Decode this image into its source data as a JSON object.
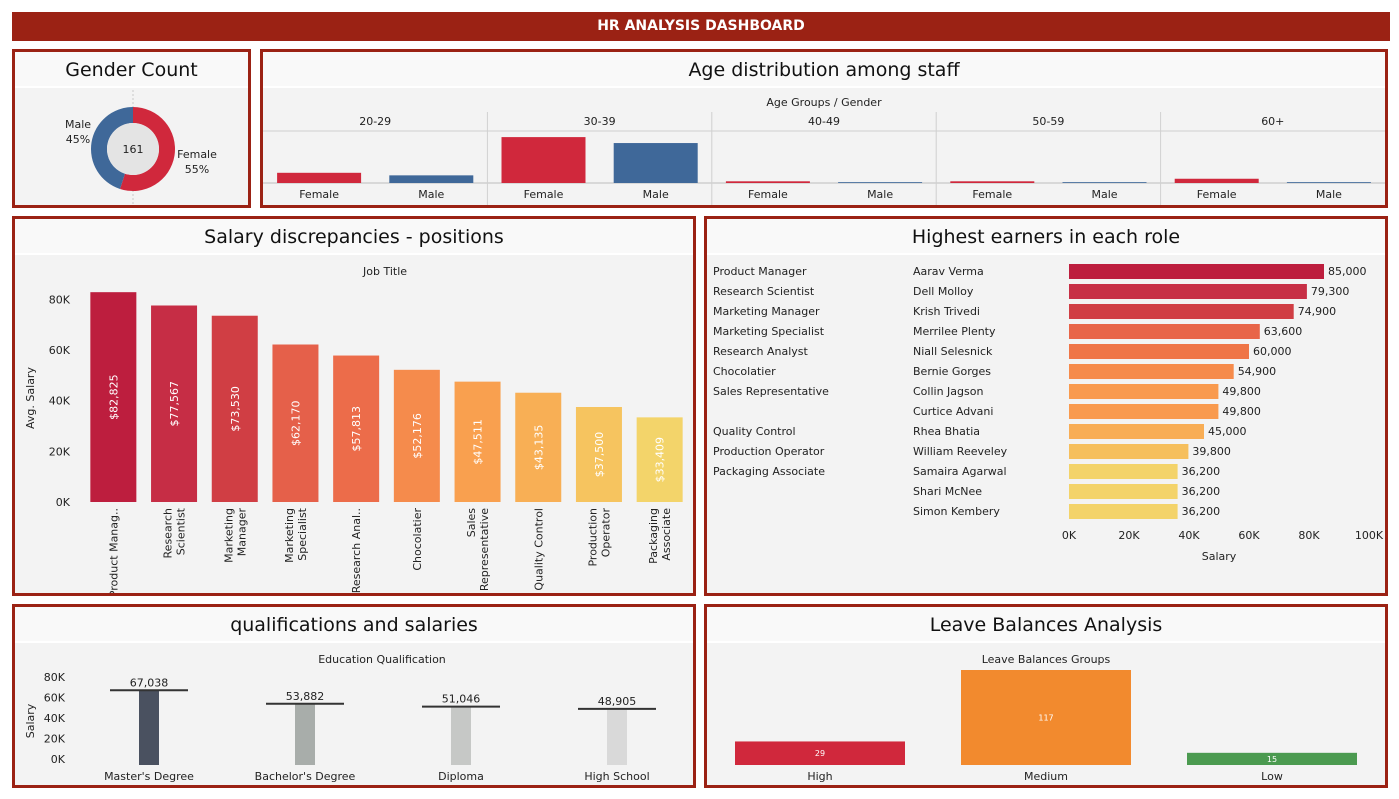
{
  "header": {
    "title": "HR ANALYSIS DASHBOARD"
  },
  "panels": {
    "gender": {
      "title": "Gender Count"
    },
    "age": {
      "title": "Age distribution among staff"
    },
    "salary": {
      "title": "Salary discrepancies - positions"
    },
    "earners": {
      "title": "Highest earners in each role"
    },
    "qual": {
      "title": "qualifications and salaries"
    },
    "leave": {
      "title": "Leave Balances Analysis"
    }
  },
  "chart_data": [
    {
      "id": "gender",
      "type": "pie",
      "total_label": "161",
      "slices": [
        {
          "name": "Female",
          "percent": 55,
          "pct_label": "55%",
          "color": "#d0283c"
        },
        {
          "name": "Male",
          "percent": 45,
          "pct_label": "45%",
          "color": "#3f6899"
        }
      ]
    },
    {
      "id": "age",
      "type": "bar",
      "header_label": "Age Groups  /  Gender",
      "groups": [
        {
          "label": "20-29",
          "values": [
            12,
            9
          ]
        },
        {
          "label": "30-39",
          "values": [
            54,
            47
          ]
        },
        {
          "label": "40-49",
          "values": [
            2,
            1
          ]
        },
        {
          "label": "50-59",
          "values": [
            2,
            1
          ]
        },
        {
          "label": "60+",
          "values": [
            5,
            1
          ]
        }
      ],
      "series": [
        {
          "name": "Female",
          "color": "#d0283c"
        },
        {
          "name": "Male",
          "color": "#3f6899"
        }
      ]
    },
    {
      "id": "salary",
      "type": "bar",
      "xlabel": "Job Title",
      "ylabel": "Avg. Salary",
      "ylim": [
        0,
        90000
      ],
      "yticks": [
        {
          "v": 0,
          "label": "0K"
        },
        {
          "v": 20000,
          "label": "20K"
        },
        {
          "v": 40000,
          "label": "40K"
        },
        {
          "v": 60000,
          "label": "60K"
        },
        {
          "v": 80000,
          "label": "80K"
        }
      ],
      "categories": [
        "Product Manag..",
        "Research Scientist",
        "Marketing Manager",
        "Marketing Specialist",
        "Research Anal..",
        "Chocolatier",
        "Sales Representative",
        "Quality Control",
        "Production Operator",
        "Packaging Associate"
      ],
      "category_lines": [
        [
          "Product Manag.."
        ],
        [
          "Research",
          "Scientist"
        ],
        [
          "Marketing",
          "Manager"
        ],
        [
          "Marketing",
          "Specialist"
        ],
        [
          "Research Anal.."
        ],
        [
          "Chocolatier"
        ],
        [
          "Sales",
          "Representative"
        ],
        [
          "Quality Control"
        ],
        [
          "Production",
          "Operator"
        ],
        [
          "Packaging",
          "Associate"
        ]
      ],
      "values": [
        82825,
        77567,
        73530,
        62170,
        57813,
        52176,
        47511,
        43135,
        37500,
        33409
      ],
      "value_labels": [
        "$82,825",
        "$77,567",
        "$73,530",
        "$62,170",
        "$57,813",
        "$52,176",
        "$47,511",
        "$43,135",
        "$37,500",
        "$33,409"
      ],
      "colors": [
        "#bd1e3e",
        "#c62d45",
        "#d03e44",
        "#e5604a",
        "#ec6c4a",
        "#f58b4c",
        "#f9a04f",
        "#f8af55",
        "#f6c45f",
        "#f3d46a"
      ]
    },
    {
      "id": "earners",
      "type": "bar",
      "orientation": "horizontal",
      "xlabel": "Salary",
      "xlim": [
        0,
        100000
      ],
      "xticks": [
        {
          "v": 0,
          "label": "0K"
        },
        {
          "v": 20000,
          "label": "20K"
        },
        {
          "v": 40000,
          "label": "40K"
        },
        {
          "v": 60000,
          "label": "60K"
        },
        {
          "v": 80000,
          "label": "80K"
        },
        {
          "v": 100000,
          "label": "100K"
        }
      ],
      "rows": [
        {
          "role": "Product Manager",
          "name": "Aarav Verma",
          "value": 85000,
          "label": "85,000",
          "color": "#bd1e3e"
        },
        {
          "role": "Research Scientist",
          "name": "Dell Molloy",
          "value": 79300,
          "label": "79,300",
          "color": "#c72f45"
        },
        {
          "role": "Marketing Manager",
          "name": "Krish Trivedi",
          "value": 74900,
          "label": "74,900",
          "color": "#d03e44"
        },
        {
          "role": "Marketing Specialist",
          "name": "Merrilee Plenty",
          "value": 63600,
          "label": "63,600",
          "color": "#e86548"
        },
        {
          "role": "Research Analyst",
          "name": "Niall Selesnick",
          "value": 60000,
          "label": "60,000",
          "color": "#ef7547"
        },
        {
          "role": "Chocolatier",
          "name": "Bernie Gorges",
          "value": 54900,
          "label": "54,900",
          "color": "#f68b4b"
        },
        {
          "role": "Sales Representative",
          "name": "Collin Jagson",
          "value": 49800,
          "label": "49,800",
          "color": "#f99a4e"
        },
        {
          "role": "",
          "name": "Curtice Advani",
          "value": 49800,
          "label": "49,800",
          "color": "#f99a4e"
        },
        {
          "role": "Quality Control",
          "name": "Rhea Bhatia",
          "value": 45000,
          "label": "45,000",
          "color": "#f8ad55"
        },
        {
          "role": "Production Operator",
          "name": "William Reeveley",
          "value": 39800,
          "label": "39,800",
          "color": "#f6bf5d"
        },
        {
          "role": "Packaging Associate",
          "name": "Samaira Agarwal",
          "value": 36200,
          "label": "36,200",
          "color": "#f3d36a"
        },
        {
          "role": "",
          "name": "Shari McNee",
          "value": 36200,
          "label": "36,200",
          "color": "#f3d36a"
        },
        {
          "role": "",
          "name": "Simon Kembery",
          "value": 36200,
          "label": "36,200",
          "color": "#f3d36a"
        }
      ]
    },
    {
      "id": "qual",
      "type": "bar",
      "xlabel": "Education Qualification",
      "ylabel": "Salary",
      "ylim": [
        0,
        80000
      ],
      "yticks": [
        {
          "v": 0,
          "label": "0K"
        },
        {
          "v": 20000,
          "label": "20K"
        },
        {
          "v": 40000,
          "label": "40K"
        },
        {
          "v": 60000,
          "label": "60K"
        },
        {
          "v": 80000,
          "label": "80K"
        }
      ],
      "categories": [
        "Master's Degree",
        "Bachelor's Degree",
        "Diploma",
        "High School"
      ],
      "values": [
        67038,
        53882,
        51046,
        48905
      ],
      "value_labels": [
        "67,038",
        "53,882",
        "51,046",
        "48,905"
      ],
      "colors": [
        "#4a5160",
        "#a8adaa",
        "#c6c8c6",
        "#d9d9d9"
      ]
    },
    {
      "id": "leave",
      "type": "bar",
      "xlabel": "Leave Balances Groups",
      "categories": [
        "High",
        "Medium",
        "Low"
      ],
      "values": [
        29,
        117,
        15
      ],
      "value_labels": [
        "29",
        "117",
        "15"
      ],
      "colors": [
        "#d0283c",
        "#f28a2e",
        "#4b9a50"
      ]
    }
  ]
}
